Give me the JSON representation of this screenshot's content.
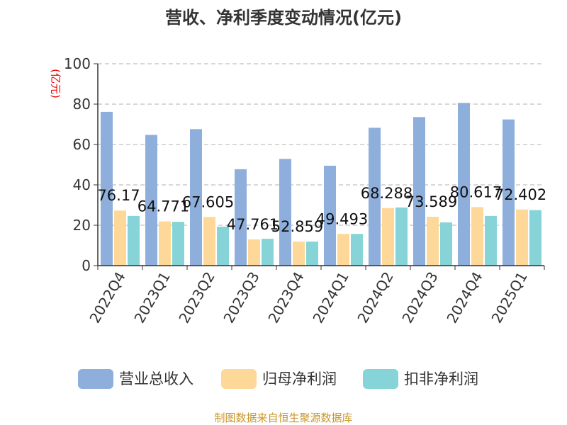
{
  "chart_data": {
    "type": "bar",
    "title": "营收、净利季度变动情况(亿元)",
    "ylabel": "(亿元)",
    "ylim": [
      0,
      100
    ],
    "yticks": [
      0,
      20,
      40,
      60,
      80,
      100
    ],
    "grid": true,
    "legend_position": "bottom",
    "categories": [
      "2022Q4",
      "2023Q1",
      "2023Q2",
      "2023Q3",
      "2023Q4",
      "2024Q1",
      "2024Q2",
      "2024Q3",
      "2024Q4",
      "2025Q1"
    ],
    "series": [
      {
        "name": "营业总收入",
        "color": "#8eaedb",
        "values": [
          76.17,
          64.771,
          67.605,
          47.761,
          52.859,
          49.493,
          68.288,
          73.589,
          80.617,
          72.402
        ],
        "labels": [
          "76.17",
          "64.771",
          "67.605",
          "47.761",
          "52.859",
          "49.493",
          "68.288",
          "73.589",
          "80.617",
          "72.402"
        ]
      },
      {
        "name": "归母净利润",
        "color": "#fed898",
        "values": [
          27.3,
          21.9,
          24.1,
          13.0,
          11.9,
          15.7,
          28.5,
          24.2,
          29.0,
          27.8
        ]
      },
      {
        "name": "扣非净利润",
        "color": "#86d4d8",
        "values": [
          24.6,
          21.7,
          19.3,
          13.3,
          11.9,
          15.7,
          28.8,
          21.4,
          24.6,
          27.5
        ]
      }
    ]
  },
  "source": "制图数据来自恒生聚源数据库"
}
